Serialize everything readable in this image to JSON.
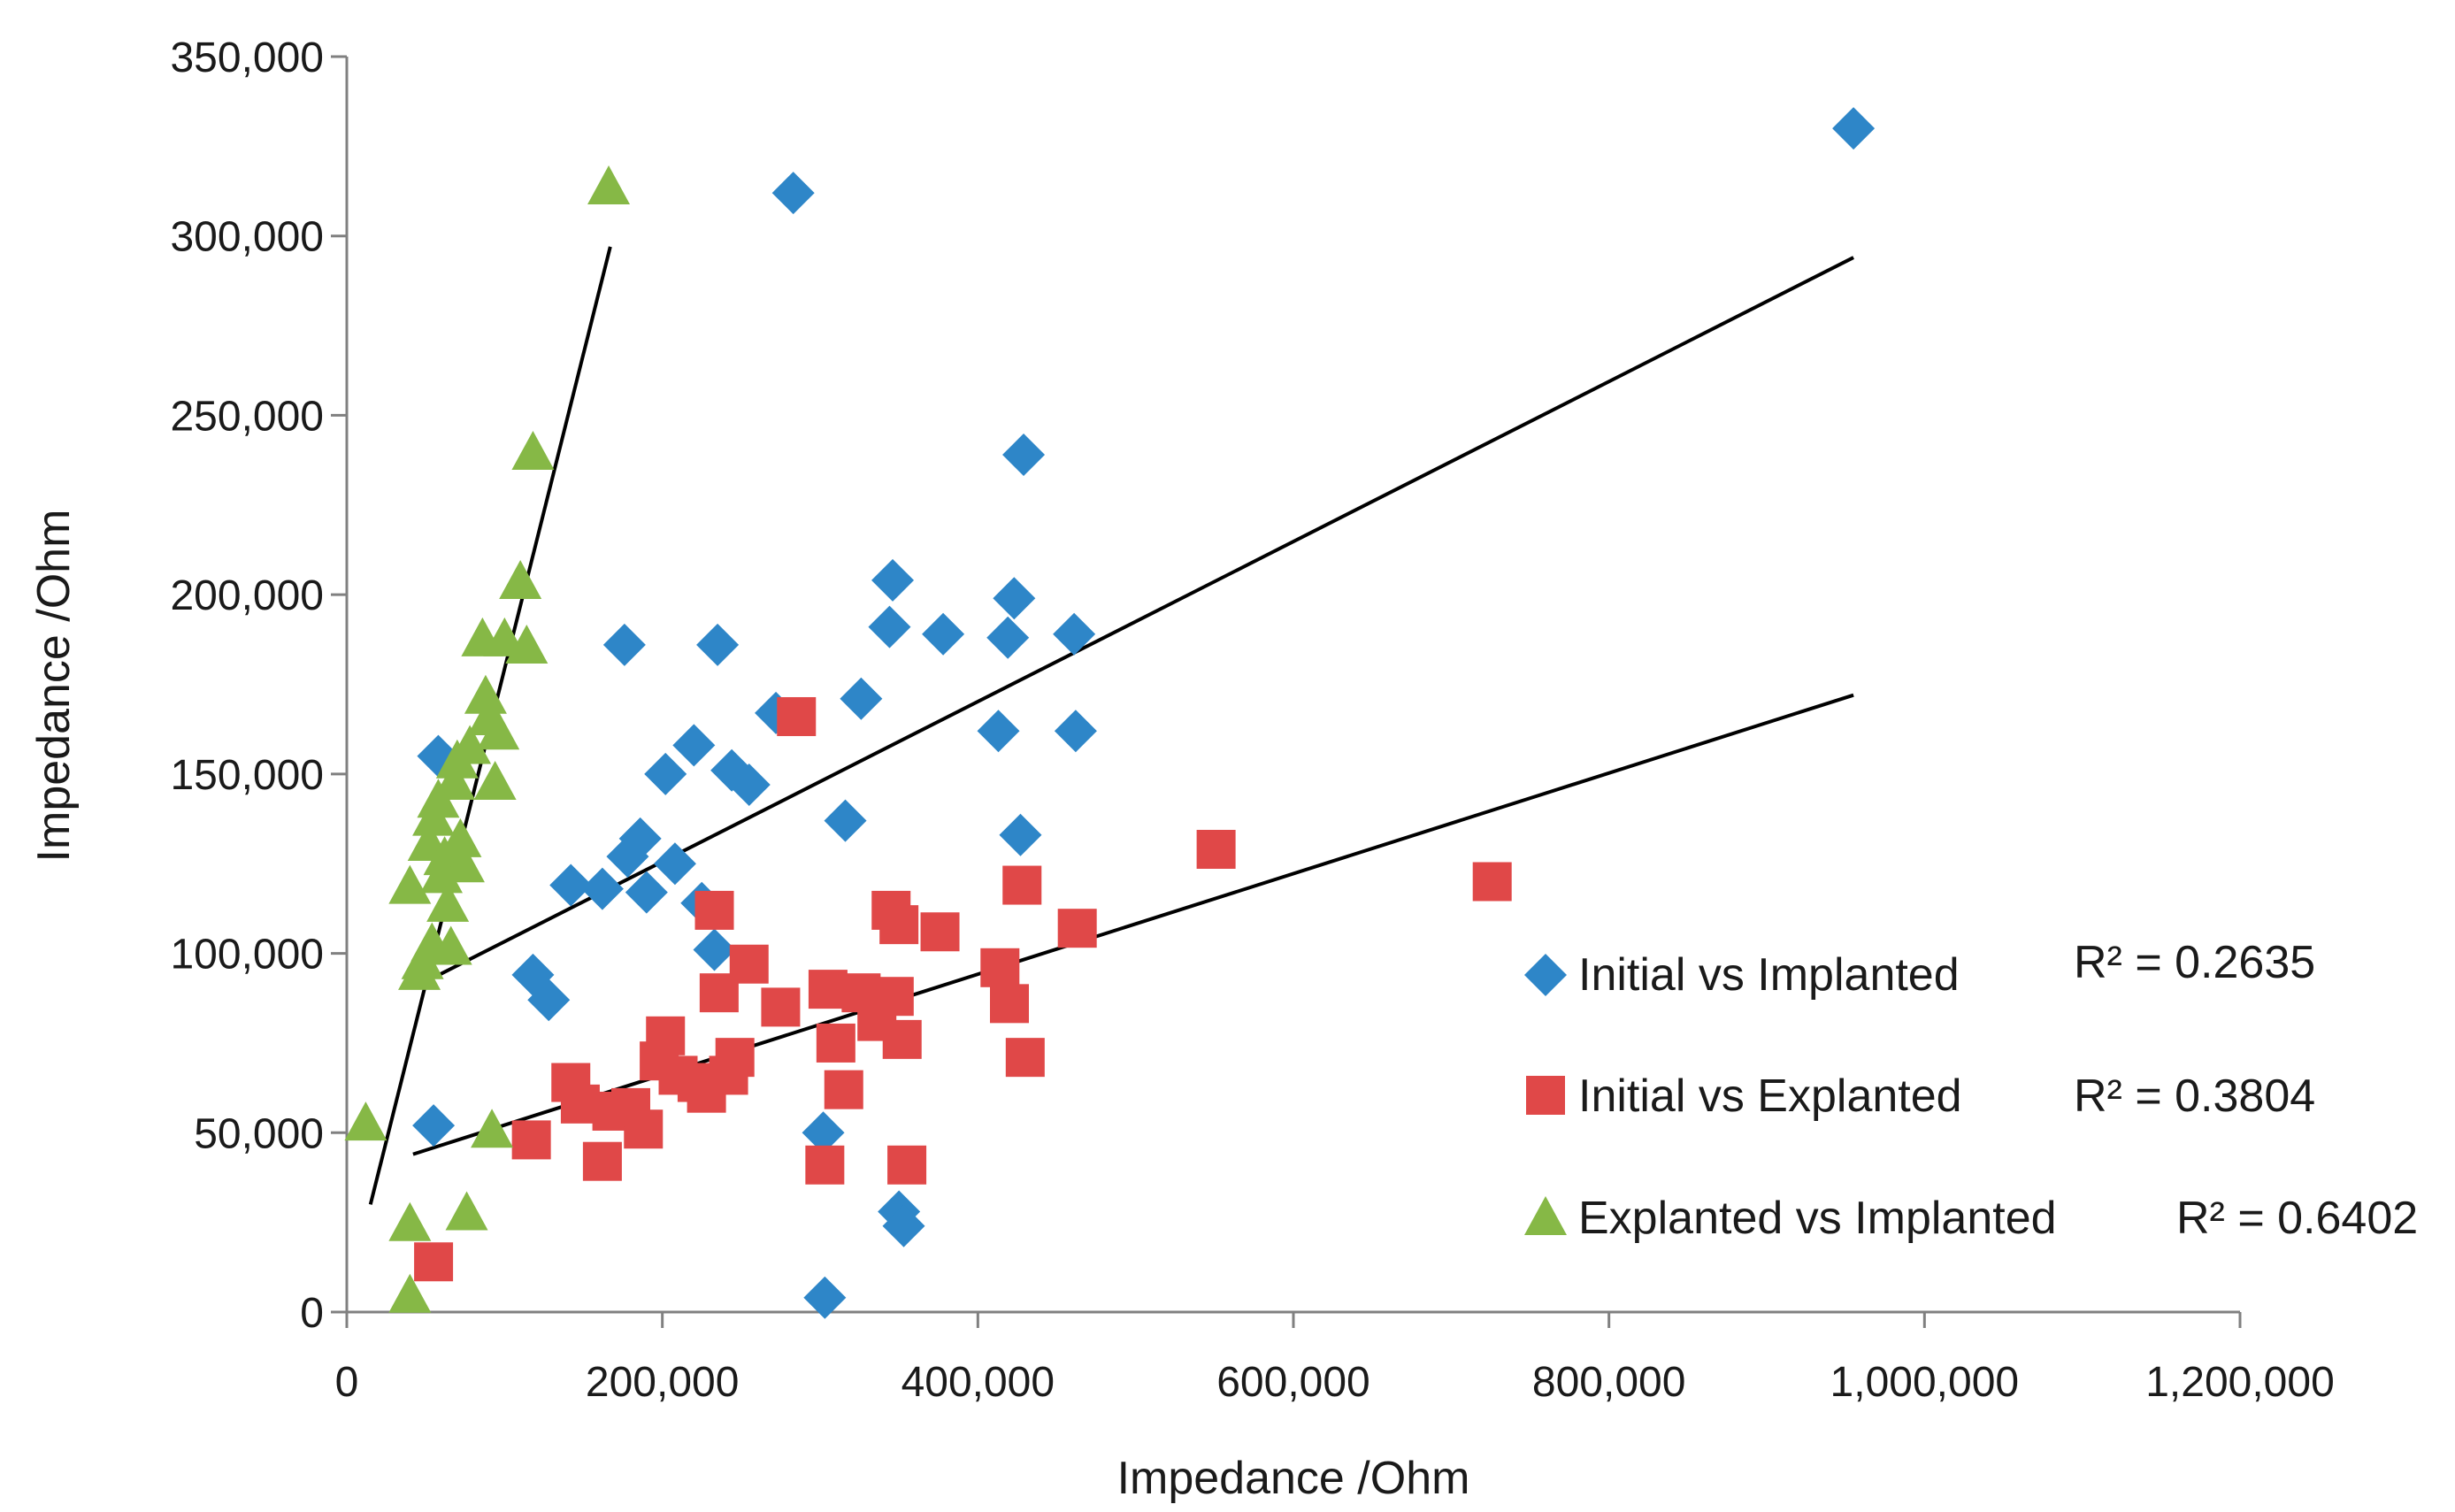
{
  "chart_data": {
    "type": "scatter",
    "title": "",
    "xlabel": "Impedance /Ohm",
    "ylabel": "Impedance /Ohm",
    "xlim": [
      0,
      1200000
    ],
    "ylim": [
      0,
      350000
    ],
    "x_ticks": [
      0,
      200000,
      400000,
      600000,
      800000,
      1000000,
      1200000
    ],
    "y_ticks": [
      0,
      50000,
      100000,
      150000,
      200000,
      250000,
      300000,
      350000
    ],
    "x_tick_labels": [
      "0",
      "200,000",
      "400,000",
      "600,000",
      "800,000",
      "1,000,000",
      "1,200,000"
    ],
    "y_tick_labels": [
      "0",
      "50,000",
      "100,000",
      "150,000",
      "200,000",
      "250,000",
      "300,000",
      "350,000"
    ],
    "grid": false,
    "legend_position": "bottom-right",
    "series": [
      {
        "name": "Initial vs Implanted",
        "r2_label": "R² = 0.2635",
        "marker": "diamond",
        "color": "#2e86c8",
        "trendline": {
          "x": [
            45000,
            955000
          ],
          "y": [
            91000,
            294000
          ]
        },
        "points": [
          [
            55000,
            52000
          ],
          [
            58000,
            155000
          ],
          [
            118000,
            94000
          ],
          [
            128000,
            87000
          ],
          [
            142000,
            119000
          ],
          [
            162000,
            118000
          ],
          [
            176000,
            186000
          ],
          [
            178000,
            127000
          ],
          [
            186000,
            132000
          ],
          [
            190000,
            117000
          ],
          [
            202000,
            150000
          ],
          [
            208000,
            125000
          ],
          [
            220000,
            158000
          ],
          [
            225000,
            114000
          ],
          [
            233000,
            101000
          ],
          [
            235000,
            186000
          ],
          [
            244000,
            151000
          ],
          [
            255000,
            147000
          ],
          [
            272000,
            167000
          ],
          [
            283000,
            312000
          ],
          [
            302000,
            50000
          ],
          [
            303000,
            4000
          ],
          [
            316000,
            137000
          ],
          [
            326000,
            171000
          ],
          [
            344000,
            191000
          ],
          [
            346000,
            204000
          ],
          [
            350000,
            28000
          ],
          [
            353000,
            24000
          ],
          [
            378000,
            189000
          ],
          [
            413000,
            162000
          ],
          [
            419000,
            188000
          ],
          [
            423000,
            199000
          ],
          [
            427000,
            133000
          ],
          [
            429000,
            239000
          ],
          [
            461000,
            189000
          ],
          [
            462000,
            162000
          ],
          [
            955000,
            330000
          ]
        ]
      },
      {
        "name": "Initial vs Explanted",
        "r2_label": "R² = 0.3804",
        "marker": "square",
        "color": "#e04848",
        "trendline": {
          "x": [
            42000,
            955000
          ],
          "y": [
            44000,
            172000
          ]
        },
        "points": [
          [
            55000,
            14000
          ],
          [
            117000,
            48000
          ],
          [
            142000,
            64000
          ],
          [
            148000,
            58000
          ],
          [
            162000,
            42000
          ],
          [
            168000,
            56000
          ],
          [
            180000,
            57000
          ],
          [
            188000,
            51000
          ],
          [
            198000,
            70000
          ],
          [
            202000,
            77000
          ],
          [
            210000,
            66000
          ],
          [
            222000,
            64000
          ],
          [
            228000,
            61000
          ],
          [
            233000,
            112000
          ],
          [
            236000,
            89000
          ],
          [
            242000,
            66000
          ],
          [
            246000,
            71000
          ],
          [
            255000,
            97000
          ],
          [
            275000,
            85000
          ],
          [
            285000,
            166000
          ],
          [
            305000,
            90000
          ],
          [
            303000,
            41000
          ],
          [
            310000,
            75000
          ],
          [
            315000,
            62000
          ],
          [
            326000,
            89000
          ],
          [
            336000,
            81000
          ],
          [
            345000,
            112000
          ],
          [
            347000,
            88000
          ],
          [
            350000,
            108000
          ],
          [
            352000,
            76000
          ],
          [
            355000,
            41000
          ],
          [
            376000,
            106000
          ],
          [
            414000,
            96000
          ],
          [
            420000,
            86000
          ],
          [
            428000,
            119000
          ],
          [
            430000,
            71000
          ],
          [
            463000,
            107000
          ],
          [
            551000,
            129000
          ],
          [
            726000,
            120000
          ]
        ]
      },
      {
        "name": "Explanted vs Implanted",
        "r2_label": "R² = 0.6402",
        "marker": "triangle",
        "color": "#86b846",
        "trendline": {
          "x": [
            15000,
            167000
          ],
          "y": [
            30000,
            297000
          ]
        },
        "points": [
          [
            12000,
            52000
          ],
          [
            40000,
            118000
          ],
          [
            40000,
            24000
          ],
          [
            40000,
            4000
          ],
          [
            46000,
            94000
          ],
          [
            48000,
            97000
          ],
          [
            52000,
            130000
          ],
          [
            54000,
            102000
          ],
          [
            55000,
            137000
          ],
          [
            58000,
            142000
          ],
          [
            60000,
            121000
          ],
          [
            62000,
            126000
          ],
          [
            64000,
            113000
          ],
          [
            66000,
            101000
          ],
          [
            68000,
            147000
          ],
          [
            70000,
            153000
          ],
          [
            72000,
            131000
          ],
          [
            74000,
            124000
          ],
          [
            76000,
            27000
          ],
          [
            78000,
            157000
          ],
          [
            86000,
            187000
          ],
          [
            88000,
            171000
          ],
          [
            90000,
            165000
          ],
          [
            92000,
            50000
          ],
          [
            94000,
            147000
          ],
          [
            96000,
            161000
          ],
          [
            100000,
            187000
          ],
          [
            110000,
            203000
          ],
          [
            114000,
            185000
          ],
          [
            118000,
            239000
          ],
          [
            166000,
            313000
          ]
        ]
      }
    ]
  }
}
